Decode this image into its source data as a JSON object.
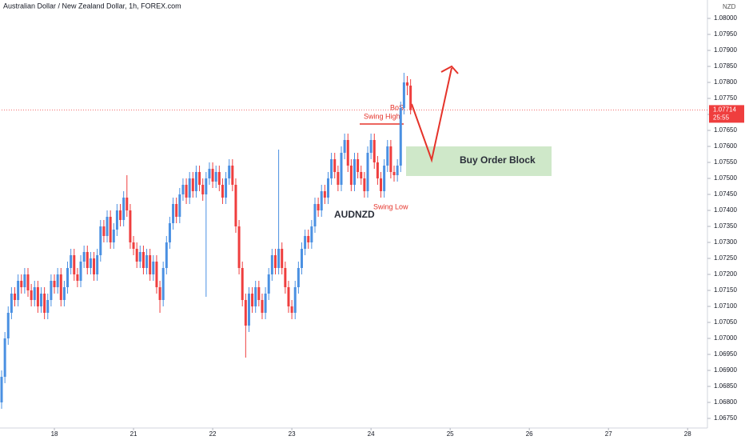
{
  "chart_data": {
    "type": "candlestick",
    "title": "Australian Dollar / New Zealand Dollar, 1h, FOREX.com",
    "currency": "NZD",
    "symbol": "AUDNZD",
    "annotations": {
      "bos": "BoS",
      "swing_high": "Swing High",
      "swing_low": "Swing Low",
      "zone": "Buy Order Block"
    },
    "last_price": 1.07714,
    "countdown": "25:55",
    "up_color": "#4a90e2",
    "down_color": "#ef3e3e",
    "grid": false,
    "xlim": [
      0,
      214
    ],
    "xticks": [
      {
        "value": 16,
        "label": "18"
      },
      {
        "value": 40,
        "label": "21"
      },
      {
        "value": 64,
        "label": "22"
      },
      {
        "value": 88,
        "label": "23"
      },
      {
        "value": 112,
        "label": "24"
      },
      {
        "value": 136,
        "label": "25"
      },
      {
        "value": 160,
        "label": "26"
      },
      {
        "value": 184,
        "label": "27"
      },
      {
        "value": 208,
        "label": "28"
      }
    ],
    "ylim": [
      1.0672,
      1.080575
    ],
    "yticks": [
      {
        "value": 1.0675,
        "label": "1.06750"
      },
      {
        "value": 1.068,
        "label": "1.06800"
      },
      {
        "value": 1.0685,
        "label": "1.06850"
      },
      {
        "value": 1.069,
        "label": "1.06900"
      },
      {
        "value": 1.0695,
        "label": "1.06950"
      },
      {
        "value": 1.07,
        "label": "1.07000"
      },
      {
        "value": 1.0705,
        "label": "1.07050"
      },
      {
        "value": 1.071,
        "label": "1.07100"
      },
      {
        "value": 1.0715,
        "label": "1.07150"
      },
      {
        "value": 1.072,
        "label": "1.07200"
      },
      {
        "value": 1.0725,
        "label": "1.07250"
      },
      {
        "value": 1.073,
        "label": "1.07300"
      },
      {
        "value": 1.0735,
        "label": "1.07350"
      },
      {
        "value": 1.074,
        "label": "1.07400"
      },
      {
        "value": 1.0745,
        "label": "1.07450"
      },
      {
        "value": 1.075,
        "label": "1.07500"
      },
      {
        "value": 1.0755,
        "label": "1.07550"
      },
      {
        "value": 1.076,
        "label": "1.07600"
      },
      {
        "value": 1.0765,
        "label": "1.07650"
      },
      {
        "value": 1.077,
        "label": "1.07700"
      },
      {
        "value": 1.0775,
        "label": "1.07750"
      },
      {
        "value": 1.078,
        "label": "1.07800"
      },
      {
        "value": 1.0785,
        "label": "1.07850"
      },
      {
        "value": 1.079,
        "label": "1.07900"
      },
      {
        "value": 1.0795,
        "label": "1.07950"
      },
      {
        "value": 1.08,
        "label": "1.08000"
      }
    ],
    "ohlc": {
      "open": [
        1.068,
        1.0688,
        1.07,
        1.0708,
        1.0714,
        1.0712,
        1.0718,
        1.0716,
        1.072,
        1.0715,
        1.0712,
        1.0716,
        1.071,
        1.0714,
        1.0708,
        1.0712,
        1.0718,
        1.0716,
        1.072,
        1.0712,
        1.0716,
        1.0722,
        1.0726,
        1.072,
        1.0718,
        1.0724,
        1.0727,
        1.0722,
        1.0725,
        1.072,
        1.0726,
        1.0735,
        1.0732,
        1.0738,
        1.073,
        1.0734,
        1.074,
        1.0737,
        1.0744,
        1.074,
        1.073,
        1.0728,
        1.0724,
        1.0727,
        1.0722,
        1.0726,
        1.072,
        1.0724,
        1.0716,
        1.0712,
        1.0722,
        1.073,
        1.0736,
        1.0742,
        1.0738,
        1.0745,
        1.0748,
        1.0744,
        1.075,
        1.0746,
        1.0752,
        1.0748,
        1.0745,
        1.075,
        1.0753,
        1.0749,
        1.0752,
        1.0748,
        1.0744,
        1.075,
        1.0754,
        1.0748,
        1.0735,
        1.0722,
        1.0712,
        1.0704,
        1.0714,
        1.071,
        1.0716,
        1.0712,
        1.0708,
        1.0714,
        1.072,
        1.0726,
        1.0722,
        1.0728,
        1.0722,
        1.0716,
        1.071,
        1.0708,
        1.0716,
        1.0722,
        1.0728,
        1.0732,
        1.073,
        1.0735,
        1.0742,
        1.074,
        1.0746,
        1.0744,
        1.075,
        1.0756,
        1.0752,
        1.0748,
        1.0758,
        1.0762,
        1.0754,
        1.0748,
        1.0756,
        1.0752,
        1.075,
        1.0746,
        1.0758,
        1.0762,
        1.0755,
        1.075,
        1.0746,
        1.0754,
        1.076,
        1.0752,
        1.0751,
        1.0754,
        1.0772,
        1.078,
        1.0779
      ],
      "high": [
        1.069,
        1.0702,
        1.071,
        1.0716,
        1.0716,
        1.072,
        1.072,
        1.0722,
        1.0722,
        1.0717,
        1.0718,
        1.0718,
        1.0716,
        1.0716,
        1.0714,
        1.072,
        1.072,
        1.0722,
        1.0722,
        1.0718,
        1.0724,
        1.0728,
        1.0728,
        1.0722,
        1.0726,
        1.0729,
        1.0729,
        1.0727,
        1.0727,
        1.0728,
        1.0737,
        1.0737,
        1.074,
        1.074,
        1.0736,
        1.0742,
        1.0742,
        1.0746,
        1.0751,
        1.0742,
        1.0732,
        1.073,
        1.0729,
        1.0729,
        1.0728,
        1.0728,
        1.0726,
        1.0726,
        1.0718,
        1.0724,
        1.0732,
        1.0738,
        1.0744,
        1.0744,
        1.0747,
        1.075,
        1.075,
        1.0752,
        1.0752,
        1.0754,
        1.0754,
        1.075,
        1.0752,
        1.0755,
        1.0755,
        1.0754,
        1.0754,
        1.075,
        1.0752,
        1.0756,
        1.0756,
        1.075,
        1.0737,
        1.0724,
        1.0714,
        1.0716,
        1.0716,
        1.0718,
        1.0718,
        1.0714,
        1.0716,
        1.0722,
        1.0728,
        1.0728,
        1.0759,
        1.073,
        1.0724,
        1.0718,
        1.0712,
        1.0718,
        1.0724,
        1.073,
        1.0734,
        1.0734,
        1.0737,
        1.0744,
        1.0744,
        1.0748,
        1.0748,
        1.0752,
        1.0758,
        1.0758,
        1.0754,
        1.076,
        1.0764,
        1.0764,
        1.0756,
        1.0758,
        1.0758,
        1.0754,
        1.0752,
        1.076,
        1.0764,
        1.0764,
        1.0757,
        1.0752,
        1.0756,
        1.0762,
        1.0762,
        1.0754,
        1.0756,
        1.0774,
        1.0783,
        1.0782,
        1.0781
      ],
      "low": [
        1.0678,
        1.0686,
        1.0698,
        1.0706,
        1.071,
        1.071,
        1.0714,
        1.0714,
        1.0713,
        1.071,
        1.071,
        1.0708,
        1.0708,
        1.0706,
        1.0706,
        1.071,
        1.0714,
        1.0714,
        1.071,
        1.071,
        1.0714,
        1.072,
        1.0718,
        1.0716,
        1.0716,
        1.0722,
        1.072,
        1.072,
        1.0718,
        1.0718,
        1.0724,
        1.073,
        1.073,
        1.0728,
        1.0728,
        1.0732,
        1.0735,
        1.0735,
        1.0738,
        1.0728,
        1.0726,
        1.0722,
        1.0722,
        1.072,
        1.072,
        1.0718,
        1.0718,
        1.0714,
        1.0708,
        1.071,
        1.072,
        1.0728,
        1.0734,
        1.0736,
        1.0736,
        1.0743,
        1.0742,
        1.0742,
        1.0744,
        1.0744,
        1.0746,
        1.0743,
        1.0713,
        1.0748,
        1.0747,
        1.0747,
        1.0746,
        1.0742,
        1.0742,
        1.0748,
        1.0746,
        1.0733,
        1.072,
        1.071,
        1.0694,
        1.0702,
        1.0708,
        1.0708,
        1.071,
        1.0706,
        1.0706,
        1.0712,
        1.0718,
        1.072,
        1.072,
        1.072,
        1.0714,
        1.0708,
        1.0706,
        1.0706,
        1.0714,
        1.072,
        1.0726,
        1.0728,
        1.0728,
        1.0733,
        1.0738,
        1.0738,
        1.0742,
        1.0742,
        1.0748,
        1.075,
        1.0746,
        1.0746,
        1.0756,
        1.0752,
        1.0746,
        1.0746,
        1.075,
        1.0748,
        1.0744,
        1.0744,
        1.0756,
        1.0753,
        1.0748,
        1.0744,
        1.0744,
        1.0752,
        1.075,
        1.0749,
        1.0749,
        1.0752,
        1.077,
        1.0776,
        1.077
      ],
      "close": [
        1.0688,
        1.07,
        1.0708,
        1.0714,
        1.0712,
        1.0718,
        1.0716,
        1.072,
        1.0715,
        1.0712,
        1.0716,
        1.071,
        1.0714,
        1.0708,
        1.0712,
        1.0718,
        1.0716,
        1.072,
        1.0712,
        1.0716,
        1.0722,
        1.0726,
        1.072,
        1.0718,
        1.0724,
        1.0727,
        1.0722,
        1.0725,
        1.072,
        1.0726,
        1.0735,
        1.0732,
        1.0738,
        1.073,
        1.0734,
        1.074,
        1.0737,
        1.0744,
        1.074,
        1.073,
        1.0728,
        1.0724,
        1.0727,
        1.0722,
        1.0726,
        1.072,
        1.0724,
        1.0716,
        1.0712,
        1.0722,
        1.073,
        1.0736,
        1.0742,
        1.0738,
        1.0745,
        1.0748,
        1.0744,
        1.075,
        1.0746,
        1.0752,
        1.0748,
        1.0745,
        1.075,
        1.0753,
        1.0749,
        1.0752,
        1.0748,
        1.0744,
        1.075,
        1.0754,
        1.0748,
        1.0735,
        1.0722,
        1.0712,
        1.0704,
        1.0714,
        1.071,
        1.0716,
        1.0712,
        1.0708,
        1.0714,
        1.072,
        1.0726,
        1.0722,
        1.0728,
        1.0722,
        1.0716,
        1.071,
        1.0708,
        1.0716,
        1.0722,
        1.0728,
        1.0732,
        1.073,
        1.0735,
        1.0742,
        1.074,
        1.0746,
        1.0744,
        1.075,
        1.0756,
        1.0752,
        1.0748,
        1.0758,
        1.0762,
        1.0754,
        1.0748,
        1.0756,
        1.0752,
        1.075,
        1.0746,
        1.0758,
        1.0762,
        1.0755,
        1.075,
        1.0746,
        1.0754,
        1.076,
        1.0752,
        1.0751,
        1.0754,
        1.0772,
        1.078,
        1.0779,
        1.07714
      ]
    }
  }
}
